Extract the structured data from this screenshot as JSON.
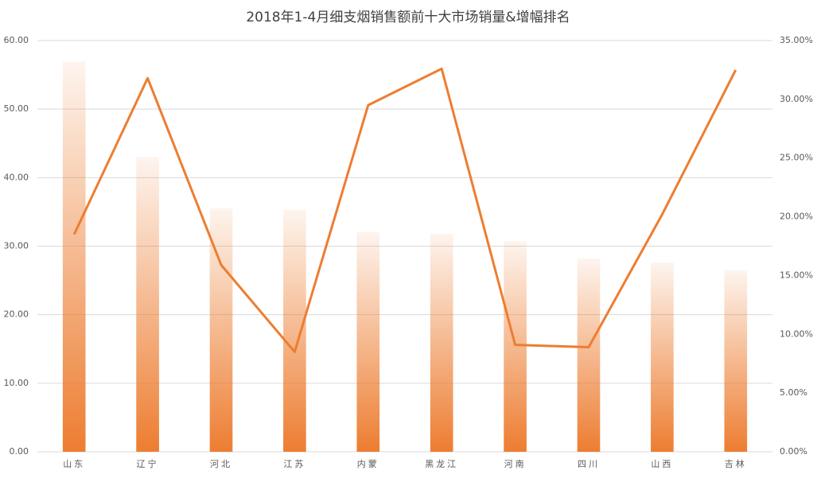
{
  "chart_data": {
    "type": "combo",
    "title": "2018年1-4月细支烟销售额前十大市场销量&增幅排名",
    "categories": [
      "山东",
      "辽宁",
      "河北",
      "江苏",
      "内蒙",
      "黑龙江",
      "河南",
      "四川",
      "山西",
      "吉林"
    ],
    "series": [
      {
        "type": "bar",
        "color": "#ed7d31",
        "values": [
          56.9,
          43.0,
          35.5,
          35.3,
          32.1,
          31.8,
          30.7,
          28.2,
          27.6,
          26.5
        ]
      },
      {
        "type": "line",
        "axis": "y2",
        "color": "#ed7d31",
        "values": [
          18.5,
          31.8,
          15.9,
          8.5,
          29.5,
          32.6,
          9.1,
          8.9,
          20.2,
          32.5
        ]
      }
    ],
    "ylim": [
      0,
      60
    ],
    "yticks": [
      {
        "value": 0,
        "label": "0.00"
      },
      {
        "value": 10,
        "label": "10.00"
      },
      {
        "value": 20,
        "label": "20.00"
      },
      {
        "value": 30,
        "label": "30.00"
      },
      {
        "value": 40,
        "label": "40.00"
      },
      {
        "value": 50,
        "label": "50.00"
      },
      {
        "value": 60,
        "label": "60.00"
      }
    ],
    "y2lim": [
      0,
      35
    ],
    "y2ticks": [
      {
        "value": 0,
        "label": "0.00%"
      },
      {
        "value": 5,
        "label": "5.00%"
      },
      {
        "value": 10,
        "label": "10.00%"
      },
      {
        "value": 15,
        "label": "15.00%"
      },
      {
        "value": 20,
        "label": "20.00%"
      },
      {
        "value": 25,
        "label": "25.00%"
      },
      {
        "value": 30,
        "label": "30.00%"
      },
      {
        "value": 35,
        "label": "35.00%"
      }
    ],
    "grid": true
  }
}
